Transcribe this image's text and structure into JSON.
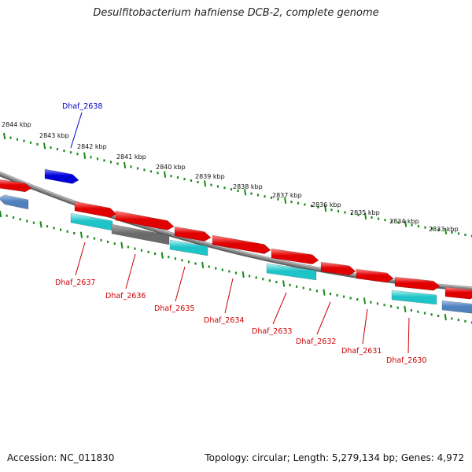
{
  "title": "Desulfitobacterium hafniense DCB-2, complete genome",
  "accession": "Accession: NC_011830",
  "genome_info": "Topology: circular; Length: 5,279,134 bp; Genes: 4,972",
  "colors": {
    "forward_gene": "#e00000",
    "forward_gene_hi": "#ff8a8a",
    "reverse_gene": "#1fc4c8",
    "reverse_gene_hi": "#b6f4f4",
    "highlight_gene": "#0000d8",
    "pseudo_gene": "#6a6a6a",
    "flank_gene": "#4f81bd",
    "backbone": "#8a8a8a",
    "ticks": "#1a8a1a",
    "label_forward": "#0000cc",
    "label_reverse": "#cc0000"
  },
  "kbp_ticks": [
    "2844 kbp",
    "2843 kbp",
    "2842 kbp",
    "2841 kbp",
    "2840 kbp",
    "2839 kbp",
    "2838 kbp",
    "2837 kbp",
    "2836 kbp",
    "2835 kbp",
    "2834 kbp",
    "2833 kbp"
  ],
  "gene_labels": [
    {
      "name": "Dhaf_2638",
      "strand": "forward"
    },
    {
      "name": "Dhaf_2637",
      "strand": "reverse"
    },
    {
      "name": "Dhaf_2636",
      "strand": "reverse"
    },
    {
      "name": "Dhaf_2635",
      "strand": "reverse"
    },
    {
      "name": "Dhaf_2634",
      "strand": "reverse"
    },
    {
      "name": "Dhaf_2633",
      "strand": "reverse"
    },
    {
      "name": "Dhaf_2632",
      "strand": "reverse"
    },
    {
      "name": "Dhaf_2631",
      "strand": "reverse"
    },
    {
      "name": "Dhaf_2630",
      "strand": "reverse"
    }
  ]
}
